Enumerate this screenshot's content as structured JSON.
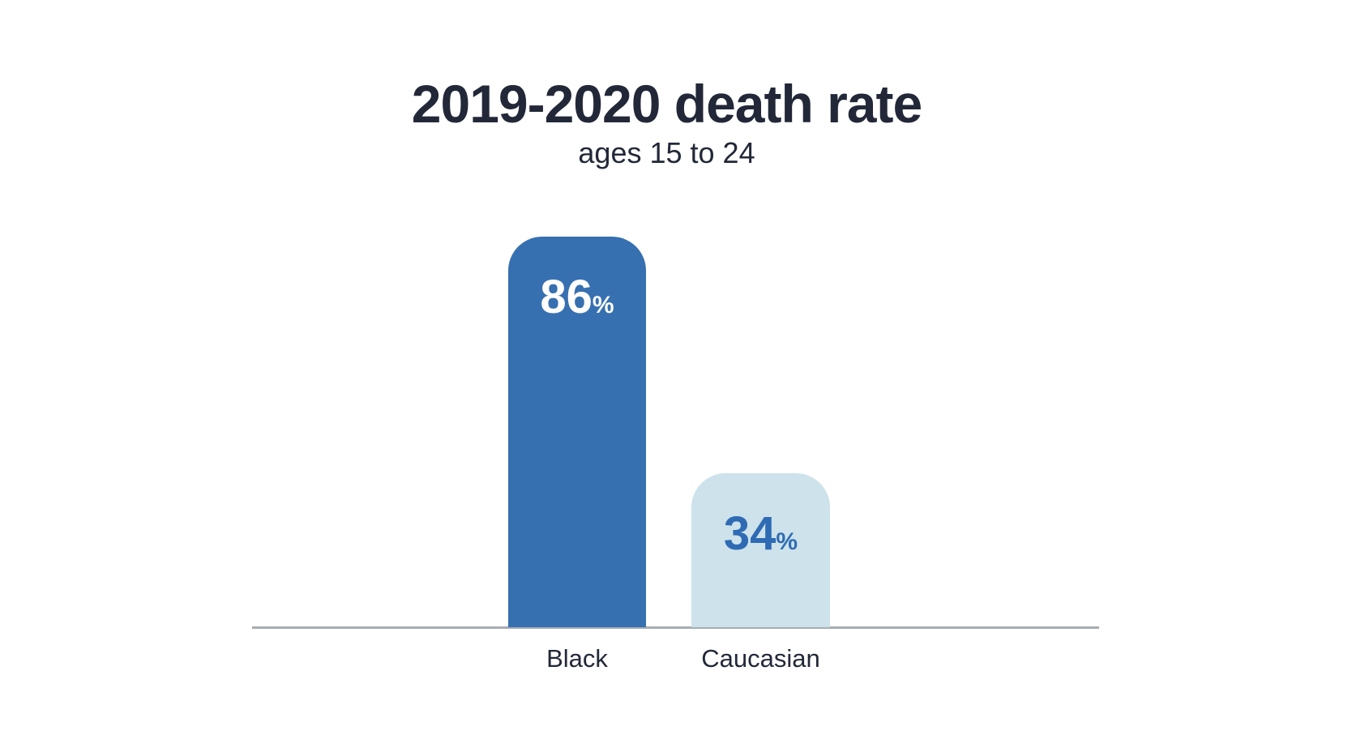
{
  "chart_data": {
    "type": "bar",
    "title": "2019-2020 death rate",
    "subtitle": "ages 15 to 24",
    "categories": [
      "Black",
      "Caucasian"
    ],
    "values": [
      86,
      34
    ],
    "unit": "%",
    "ylim": [
      0,
      100
    ],
    "grid": false,
    "legend": "none",
    "orientation": "vertical",
    "bar_colors": [
      "#3770B0",
      "#CDE2EA"
    ],
    "value_label_colors": [
      "#FFFFFF",
      "#2F6BB4"
    ]
  },
  "colors": {
    "background": "#FFFFFF",
    "title_text": "#222838",
    "bar_primary": "#3770B0",
    "bar_secondary": "#CDE2EA",
    "value_on_primary": "#FFFFFF",
    "value_on_secondary": "#2F6BB4",
    "axis_line": "#A7ADB2"
  }
}
